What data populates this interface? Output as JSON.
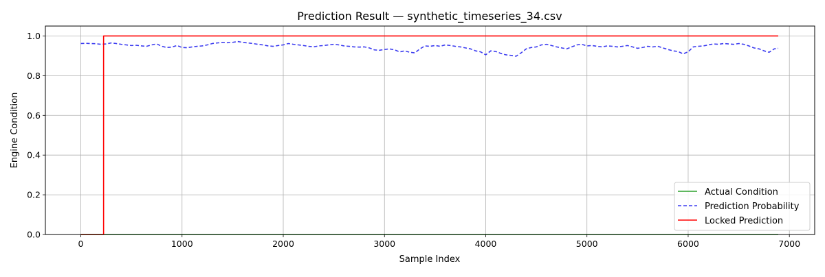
{
  "chart_data": {
    "type": "line",
    "title": "Prediction Result — synthetic_timeseries_34.csv",
    "xlabel": "Sample Index",
    "ylabel": "Engine Condition",
    "xlim": [
      -350,
      7250
    ],
    "ylim": [
      0,
      1.05
    ],
    "xticks": [
      0,
      1000,
      2000,
      3000,
      4000,
      5000,
      6000,
      7000
    ],
    "yticks": [
      0.0,
      0.2,
      0.4,
      0.6,
      0.8,
      1.0
    ],
    "xtick_labels": [
      "0",
      "1000",
      "2000",
      "3000",
      "4000",
      "5000",
      "6000",
      "7000"
    ],
    "ytick_labels": [
      "0.0",
      "0.2",
      "0.4",
      "0.6",
      "0.8",
      "1.0"
    ],
    "grid": true,
    "legend_position": "bottom-right",
    "series": [
      {
        "name": "Actual Condition",
        "color": "#2ca02c",
        "style": "solid",
        "points": [
          [
            0,
            0
          ],
          [
            6890,
            0
          ]
        ]
      },
      {
        "name": "Prediction Probability",
        "color": "#3b3bf0",
        "style": "dashed",
        "points": [
          [
            0,
            0.962
          ],
          [
            50,
            0.963
          ],
          [
            100,
            0.962
          ],
          [
            150,
            0.961
          ],
          [
            200,
            0.958
          ],
          [
            250,
            0.96
          ],
          [
            300,
            0.965
          ],
          [
            350,
            0.962
          ],
          [
            400,
            0.958
          ],
          [
            450,
            0.955
          ],
          [
            500,
            0.952
          ],
          [
            550,
            0.953
          ],
          [
            600,
            0.95
          ],
          [
            650,
            0.948
          ],
          [
            700,
            0.955
          ],
          [
            750,
            0.96
          ],
          [
            800,
            0.948
          ],
          [
            850,
            0.942
          ],
          [
            900,
            0.944
          ],
          [
            950,
            0.952
          ],
          [
            1000,
            0.942
          ],
          [
            1050,
            0.941
          ],
          [
            1100,
            0.945
          ],
          [
            1150,
            0.948
          ],
          [
            1200,
            0.95
          ],
          [
            1250,
            0.955
          ],
          [
            1300,
            0.962
          ],
          [
            1350,
            0.965
          ],
          [
            1400,
            0.968
          ],
          [
            1450,
            0.966
          ],
          [
            1500,
            0.968
          ],
          [
            1550,
            0.972
          ],
          [
            1600,
            0.968
          ],
          [
            1650,
            0.965
          ],
          [
            1700,
            0.962
          ],
          [
            1750,
            0.958
          ],
          [
            1800,
            0.955
          ],
          [
            1850,
            0.95
          ],
          [
            1900,
            0.948
          ],
          [
            1950,
            0.952
          ],
          [
            2000,
            0.955
          ],
          [
            2050,
            0.962
          ],
          [
            2100,
            0.958
          ],
          [
            2150,
            0.955
          ],
          [
            2200,
            0.952
          ],
          [
            2250,
            0.948
          ],
          [
            2300,
            0.945
          ],
          [
            2350,
            0.95
          ],
          [
            2400,
            0.952
          ],
          [
            2450,
            0.955
          ],
          [
            2500,
            0.958
          ],
          [
            2550,
            0.955
          ],
          [
            2600,
            0.95
          ],
          [
            2650,
            0.948
          ],
          [
            2700,
            0.945
          ],
          [
            2750,
            0.944
          ],
          [
            2800,
            0.945
          ],
          [
            2850,
            0.94
          ],
          [
            2900,
            0.93
          ],
          [
            2950,
            0.928
          ],
          [
            3000,
            0.932
          ],
          [
            3050,
            0.935
          ],
          [
            3100,
            0.93
          ],
          [
            3150,
            0.92
          ],
          [
            3200,
            0.925
          ],
          [
            3250,
            0.918
          ],
          [
            3300,
            0.915
          ],
          [
            3350,
            0.935
          ],
          [
            3400,
            0.95
          ],
          [
            3450,
            0.948
          ],
          [
            3500,
            0.952
          ],
          [
            3550,
            0.948
          ],
          [
            3600,
            0.955
          ],
          [
            3650,
            0.952
          ],
          [
            3700,
            0.948
          ],
          [
            3750,
            0.945
          ],
          [
            3800,
            0.94
          ],
          [
            3850,
            0.935
          ],
          [
            3900,
            0.925
          ],
          [
            3950,
            0.92
          ],
          [
            4000,
            0.905
          ],
          [
            4050,
            0.925
          ],
          [
            4100,
            0.922
          ],
          [
            4150,
            0.912
          ],
          [
            4200,
            0.905
          ],
          [
            4250,
            0.902
          ],
          [
            4300,
            0.898
          ],
          [
            4350,
            0.915
          ],
          [
            4400,
            0.935
          ],
          [
            4450,
            0.942
          ],
          [
            4500,
            0.945
          ],
          [
            4550,
            0.955
          ],
          [
            4600,
            0.958
          ],
          [
            4650,
            0.952
          ],
          [
            4700,
            0.945
          ],
          [
            4750,
            0.94
          ],
          [
            4800,
            0.935
          ],
          [
            4850,
            0.945
          ],
          [
            4900,
            0.955
          ],
          [
            4950,
            0.958
          ],
          [
            5000,
            0.95
          ],
          [
            5050,
            0.952
          ],
          [
            5100,
            0.948
          ],
          [
            5150,
            0.945
          ],
          [
            5200,
            0.95
          ],
          [
            5250,
            0.948
          ],
          [
            5300,
            0.945
          ],
          [
            5350,
            0.948
          ],
          [
            5400,
            0.952
          ],
          [
            5450,
            0.945
          ],
          [
            5500,
            0.938
          ],
          [
            5550,
            0.942
          ],
          [
            5600,
            0.948
          ],
          [
            5650,
            0.945
          ],
          [
            5700,
            0.948
          ],
          [
            5750,
            0.94
          ],
          [
            5800,
            0.932
          ],
          [
            5850,
            0.925
          ],
          [
            5900,
            0.922
          ],
          [
            5950,
            0.91
          ],
          [
            6000,
            0.92
          ],
          [
            6050,
            0.945
          ],
          [
            6100,
            0.948
          ],
          [
            6150,
            0.95
          ],
          [
            6200,
            0.955
          ],
          [
            6250,
            0.96
          ],
          [
            6300,
            0.958
          ],
          [
            6350,
            0.962
          ],
          [
            6400,
            0.96
          ],
          [
            6450,
            0.958
          ],
          [
            6500,
            0.962
          ],
          [
            6550,
            0.958
          ],
          [
            6600,
            0.95
          ],
          [
            6650,
            0.94
          ],
          [
            6700,
            0.935
          ],
          [
            6750,
            0.925
          ],
          [
            6800,
            0.918
          ],
          [
            6850,
            0.935
          ],
          [
            6890,
            0.938
          ]
        ]
      },
      {
        "name": "Locked Prediction",
        "color": "#ff0000",
        "style": "solid",
        "points": [
          [
            0,
            0
          ],
          [
            225,
            0
          ],
          [
            225,
            1
          ],
          [
            6890,
            1
          ]
        ]
      }
    ]
  }
}
